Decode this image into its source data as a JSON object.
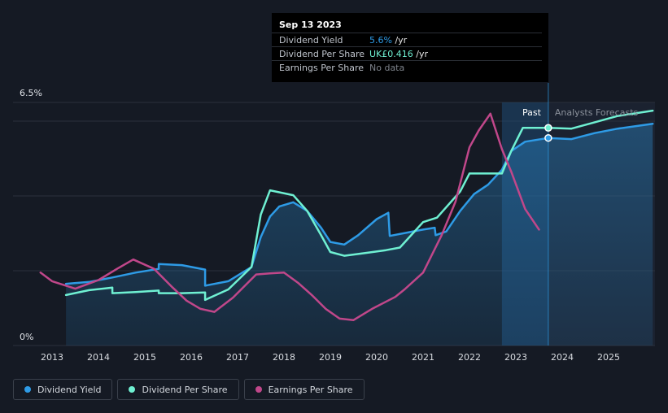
{
  "tooltip": {
    "date": "Sep 13 2023",
    "rows": [
      {
        "label": "Dividend Yield",
        "value": "5.6%",
        "unit": " /yr",
        "color": "#2e9be6"
      },
      {
        "label": "Dividend Per Share",
        "value": "UK£0.416",
        "unit": " /yr",
        "color": "#6ff0d2"
      },
      {
        "label": "Earnings Per Share",
        "value": "No data",
        "unit": "",
        "color": "#7d828a"
      }
    ]
  },
  "legend": [
    {
      "label": "Dividend Yield",
      "color": "#2e9be6"
    },
    {
      "label": "Dividend Per Share",
      "color": "#6ff0d2"
    },
    {
      "label": "Earnings Per Share",
      "color": "#c0478a"
    }
  ],
  "chart_data": {
    "type": "line",
    "y_axis_labels": {
      "top": "6.5%",
      "bottom": "0%"
    },
    "ylim": [
      0,
      6.5
    ],
    "xlim": [
      2012.3,
      2025.95
    ],
    "x_ticks": [
      "2013",
      "2014",
      "2015",
      "2016",
      "2017",
      "2018",
      "2019",
      "2020",
      "2021",
      "2022",
      "2023",
      "2024",
      "2025"
    ],
    "divider_x": 2023.7,
    "forecast_start_x": 2022.7,
    "past_label": "Past",
    "forecast_label": "Analysts Forecasts",
    "series": [
      {
        "name": "Dividend Yield",
        "color": "#2e9be6",
        "filled": true,
        "points": [
          [
            2013.3,
            1.65
          ],
          [
            2013.8,
            1.7
          ],
          [
            2014.3,
            1.82
          ],
          [
            2014.8,
            1.95
          ],
          [
            2015.3,
            2.05
          ],
          [
            2015.3,
            2.18
          ],
          [
            2015.8,
            2.15
          ],
          [
            2016.3,
            2.03
          ],
          [
            2016.3,
            1.6
          ],
          [
            2016.8,
            1.72
          ],
          [
            2017.3,
            2.1
          ],
          [
            2017.5,
            2.9
          ],
          [
            2017.7,
            3.45
          ],
          [
            2017.9,
            3.72
          ],
          [
            2018.2,
            3.83
          ],
          [
            2018.5,
            3.6
          ],
          [
            2018.8,
            3.15
          ],
          [
            2019.0,
            2.77
          ],
          [
            2019.3,
            2.7
          ],
          [
            2019.6,
            2.95
          ],
          [
            2020.0,
            3.38
          ],
          [
            2020.25,
            3.55
          ],
          [
            2020.28,
            2.93
          ],
          [
            2020.7,
            3.03
          ],
          [
            2021.0,
            3.1
          ],
          [
            2021.25,
            3.15
          ],
          [
            2021.27,
            2.95
          ],
          [
            2021.5,
            3.05
          ],
          [
            2021.8,
            3.6
          ],
          [
            2022.1,
            4.05
          ],
          [
            2022.4,
            4.3
          ],
          [
            2022.7,
            4.7
          ],
          [
            2022.9,
            5.2
          ],
          [
            2023.2,
            5.45
          ],
          [
            2023.7,
            5.55
          ],
          [
            2024.2,
            5.52
          ],
          [
            2024.7,
            5.68
          ],
          [
            2025.2,
            5.8
          ],
          [
            2025.95,
            5.93
          ]
        ]
      },
      {
        "name": "Dividend Per Share",
        "color": "#6ff0d2",
        "filled": false,
        "points": [
          [
            2013.3,
            1.35
          ],
          [
            2013.8,
            1.48
          ],
          [
            2014.3,
            1.55
          ],
          [
            2014.3,
            1.4
          ],
          [
            2014.8,
            1.43
          ],
          [
            2015.3,
            1.47
          ],
          [
            2015.3,
            1.4
          ],
          [
            2015.8,
            1.4
          ],
          [
            2016.3,
            1.42
          ],
          [
            2016.3,
            1.22
          ],
          [
            2016.8,
            1.5
          ],
          [
            2017.3,
            2.1
          ],
          [
            2017.5,
            3.5
          ],
          [
            2017.7,
            4.15
          ],
          [
            2018.2,
            4.02
          ],
          [
            2018.5,
            3.6
          ],
          [
            2018.8,
            2.95
          ],
          [
            2019.0,
            2.5
          ],
          [
            2019.3,
            2.4
          ],
          [
            2019.8,
            2.48
          ],
          [
            2020.2,
            2.55
          ],
          [
            2020.5,
            2.62
          ],
          [
            2021.0,
            3.3
          ],
          [
            2021.3,
            3.42
          ],
          [
            2021.8,
            4.12
          ],
          [
            2022.0,
            4.6
          ],
          [
            2022.7,
            4.6
          ],
          [
            2022.9,
            5.2
          ],
          [
            2023.15,
            5.82
          ],
          [
            2023.7,
            5.82
          ],
          [
            2024.2,
            5.8
          ],
          [
            2024.7,
            5.97
          ],
          [
            2025.2,
            6.14
          ],
          [
            2025.95,
            6.28
          ]
        ]
      },
      {
        "name": "Earnings Per Share",
        "color": "#c0478a",
        "filled": false,
        "points": [
          [
            2012.75,
            1.95
          ],
          [
            2013.0,
            1.72
          ],
          [
            2013.5,
            1.52
          ],
          [
            2014.0,
            1.75
          ],
          [
            2014.4,
            2.05
          ],
          [
            2014.75,
            2.3
          ],
          [
            2015.2,
            2.05
          ],
          [
            2015.6,
            1.55
          ],
          [
            2015.9,
            1.2
          ],
          [
            2016.2,
            0.98
          ],
          [
            2016.5,
            0.9
          ],
          [
            2016.9,
            1.28
          ],
          [
            2017.4,
            1.9
          ],
          [
            2017.7,
            1.93
          ],
          [
            2018.0,
            1.95
          ],
          [
            2018.3,
            1.68
          ],
          [
            2018.6,
            1.35
          ],
          [
            2018.9,
            0.98
          ],
          [
            2019.2,
            0.72
          ],
          [
            2019.5,
            0.68
          ],
          [
            2019.9,
            0.98
          ],
          [
            2020.4,
            1.3
          ],
          [
            2020.6,
            1.5
          ],
          [
            2021.0,
            1.95
          ],
          [
            2021.4,
            2.95
          ],
          [
            2021.7,
            3.85
          ],
          [
            2022.0,
            5.3
          ],
          [
            2022.2,
            5.75
          ],
          [
            2022.45,
            6.2
          ],
          [
            2022.7,
            5.25
          ],
          [
            2022.9,
            4.65
          ],
          [
            2023.2,
            3.65
          ],
          [
            2023.5,
            3.1
          ]
        ]
      }
    ],
    "markers": [
      {
        "series": "Dividend Yield",
        "x": 2023.7,
        "y": 5.55
      },
      {
        "series": "Dividend Per Share",
        "x": 2023.7,
        "y": 5.82
      }
    ]
  }
}
